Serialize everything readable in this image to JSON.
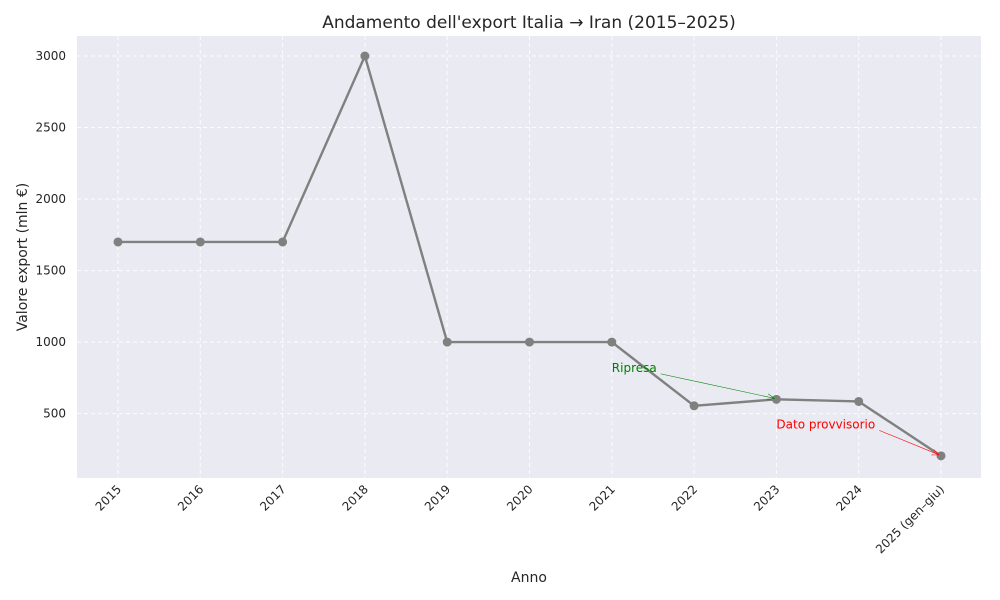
{
  "chart_data": {
    "type": "line",
    "title": "Andamento dell'export Italia → Iran (2015–2025)",
    "xlabel": "Anno",
    "ylabel": "Valore export (mln €)",
    "categories": [
      "2015",
      "2016",
      "2017",
      "2018",
      "2019",
      "2020",
      "2021",
      "2022",
      "2023",
      "2024",
      "2025 (gen–giu)"
    ],
    "series": [
      {
        "values": [
          1700,
          1700,
          1700,
          3000,
          1000,
          1000,
          1000,
          555,
          600,
          585,
          205
        ],
        "color": "#808080"
      }
    ],
    "ylim": [
      50,
      3140
    ],
    "yticks": [
      500,
      1000,
      1500,
      2000,
      2500,
      3000
    ],
    "grid": true,
    "background": "#eaeaf2",
    "annotations": [
      {
        "text": "Ripresa",
        "color": "#008000",
        "text_at": [
          "2021",
          820
        ],
        "target": [
          "2023",
          600
        ]
      },
      {
        "text": "Dato provvisorio",
        "color": "#ff0000",
        "text_at": [
          "2023",
          425
        ],
        "target": [
          "2025 (gen–giu)",
          205
        ]
      }
    ]
  }
}
